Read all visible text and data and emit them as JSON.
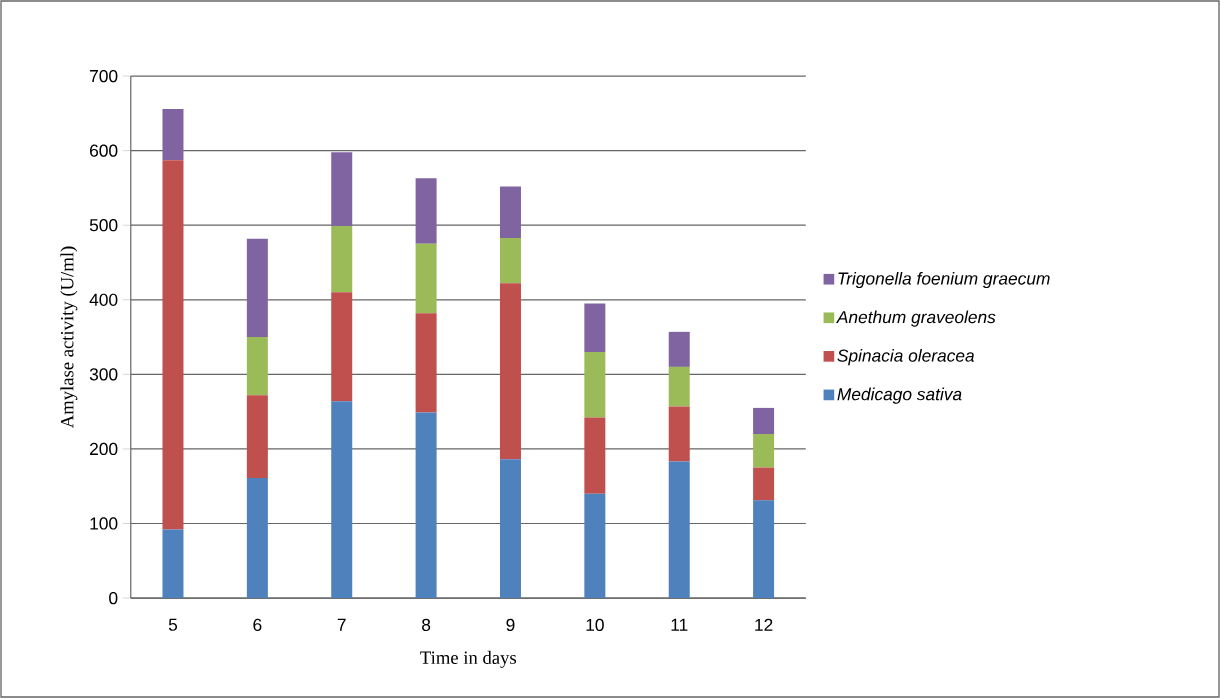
{
  "chart_data": {
    "type": "bar",
    "stacked": true,
    "xlabel": "Time in days",
    "ylabel": "Amylase activity (U/ml)",
    "categories": [
      "5",
      "6",
      "7",
      "8",
      "9",
      "10",
      "11",
      "12"
    ],
    "series": [
      {
        "name": "Medicago sativa",
        "color": "#4f81bd",
        "values": [
          92,
          161,
          264,
          249,
          186,
          140,
          183,
          131
        ]
      },
      {
        "name": "Spinacia oleracea",
        "color": "#c0504d",
        "values": [
          495,
          111,
          146,
          133,
          236,
          102,
          74,
          44
        ]
      },
      {
        "name": "Anethum graveolens",
        "color": "#9bbb59",
        "values": [
          0,
          78,
          89,
          93,
          61,
          88,
          53,
          45
        ]
      },
      {
        "name": "Trigonella foenium graecum",
        "color": "#8064a2",
        "values": [
          69,
          132,
          99,
          88,
          69,
          65,
          47,
          35
        ]
      }
    ],
    "ylim": [
      0,
      700
    ],
    "yticks": [
      0,
      100,
      200,
      300,
      400,
      500,
      600,
      700
    ],
    "grid": "y",
    "legend": "right"
  }
}
